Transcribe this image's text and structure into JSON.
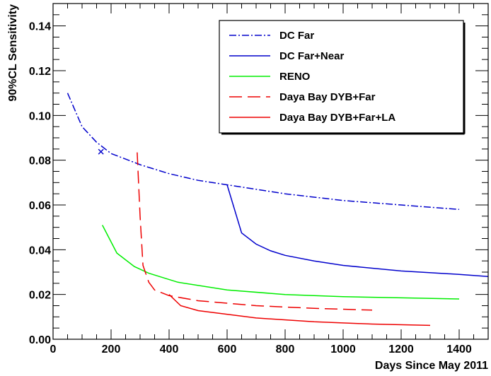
{
  "chart_data": {
    "type": "line",
    "title": "",
    "xlabel": "Days Since May 2011",
    "ylabel": "90%CL Sensitivity",
    "xlim": [
      0,
      1500
    ],
    "ylim": [
      0,
      0.15
    ],
    "x_ticks": [
      0,
      200,
      400,
      600,
      800,
      1000,
      1200,
      1400
    ],
    "x_tick_labels": [
      "0",
      "200",
      "400",
      "600",
      "800",
      "1000",
      "1200",
      "1400"
    ],
    "y_ticks": [
      0,
      0.02,
      0.04,
      0.06,
      0.08,
      0.1,
      0.12,
      0.14
    ],
    "y_tick_labels": [
      "0.00",
      "0.02",
      "0.04",
      "0.06",
      "0.08",
      "0.10",
      "0.12",
      "0.14"
    ],
    "grid": false,
    "legend_position": "top-right",
    "series": [
      {
        "name": "DC Far",
        "color": "#0000cc",
        "dash": "dash-dot",
        "x": [
          50,
          100,
          150,
          200,
          300,
          400,
          500,
          600,
          800,
          1000,
          1200,
          1400
        ],
        "y": [
          0.11,
          0.095,
          0.088,
          0.083,
          0.078,
          0.074,
          0.071,
          0.069,
          0.065,
          0.062,
          0.06,
          0.058
        ]
      },
      {
        "name": "DC Far+Near",
        "color": "#0000cc",
        "dash": "solid",
        "x": [
          600,
          650,
          700,
          750,
          800,
          900,
          1000,
          1200,
          1400,
          1500
        ],
        "y": [
          0.069,
          0.0475,
          0.0425,
          0.0395,
          0.0375,
          0.035,
          0.033,
          0.0305,
          0.029,
          0.028
        ]
      },
      {
        "name": "RENO",
        "color": "#00ee00",
        "dash": "solid",
        "x": [
          170,
          220,
          280,
          330,
          430,
          600,
          800,
          1000,
          1200,
          1400
        ],
        "y": [
          0.051,
          0.0385,
          0.0325,
          0.0295,
          0.0255,
          0.022,
          0.02,
          0.019,
          0.0185,
          0.018
        ]
      },
      {
        "name": "Daya Bay DYB+Far",
        "color": "#ee0000",
        "dash": "long-dash",
        "x": [
          290,
          300,
          310,
          330,
          350,
          400,
          500,
          700,
          900,
          1100
        ],
        "y": [
          0.0835,
          0.055,
          0.033,
          0.0255,
          0.022,
          0.0195,
          0.0172,
          0.015,
          0.0138,
          0.013
        ]
      },
      {
        "name": "Daya Bay DYB+Far+LA",
        "color": "#ee0000",
        "dash": "solid",
        "x": [
          400,
          440,
          500,
          700,
          900,
          1100,
          1300
        ],
        "y": [
          0.02,
          0.015,
          0.0128,
          0.0095,
          0.0078,
          0.0068,
          0.0062
        ]
      }
    ],
    "markers": [
      {
        "label": "x",
        "x": 165,
        "y": 0.0838,
        "color": "#0000cc"
      }
    ]
  }
}
